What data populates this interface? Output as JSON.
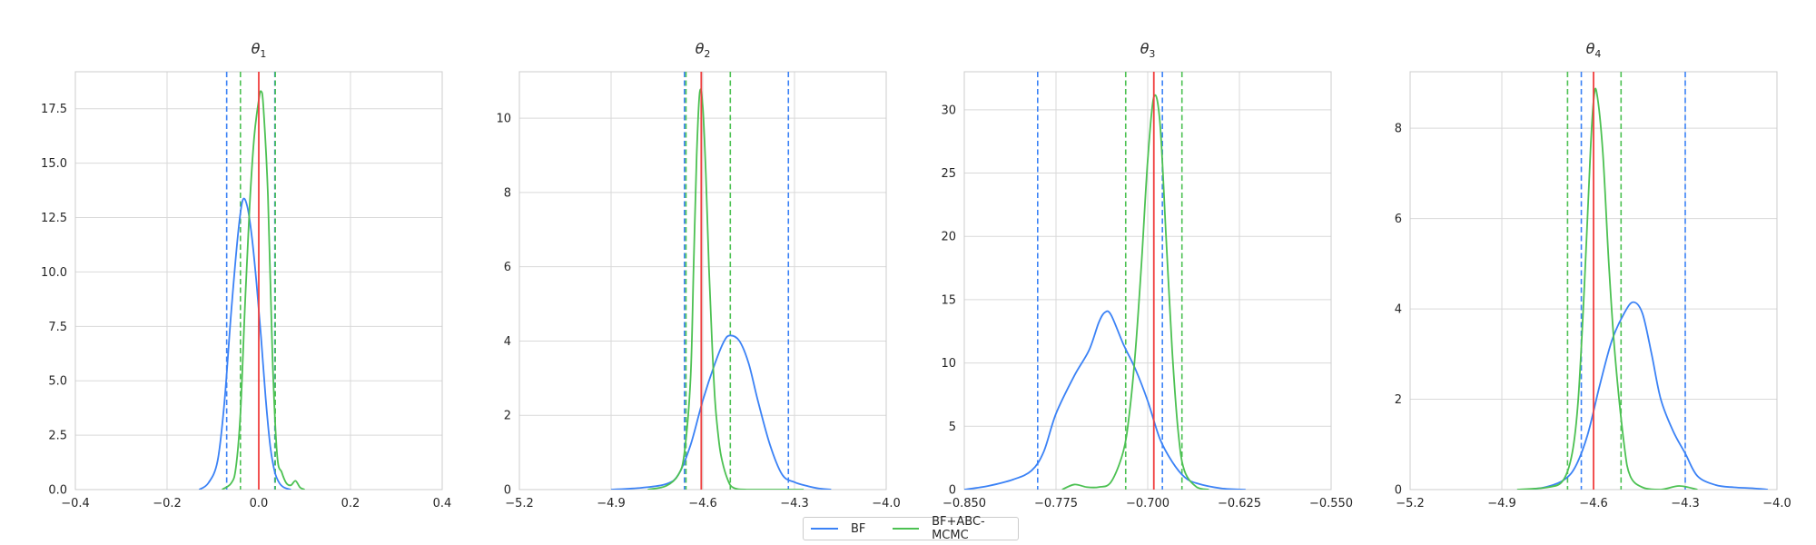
{
  "chart_data": [
    {
      "type": "line",
      "title": "θ",
      "title_sub": "1",
      "xlim": [
        -0.4,
        0.4
      ],
      "ylim": [
        0,
        19.2
      ],
      "xticks": [
        -0.4,
        -0.2,
        0.0,
        0.2,
        0.4
      ],
      "xtick_labels": [
        "−0.4",
        "−0.2",
        "0.0",
        "0.2",
        "0.4"
      ],
      "yticks": [
        0.0,
        2.5,
        5.0,
        7.5,
        10.0,
        12.5,
        15.0,
        17.5
      ],
      "ytick_labels": [
        "0.0",
        "2.5",
        "5.0",
        "7.5",
        "10.0",
        "12.5",
        "15.0",
        "17.5"
      ],
      "true_value": 0.0,
      "series": [
        {
          "name": "BF",
          "color": "#3b82f6",
          "x": [
            -0.13,
            -0.11,
            -0.09,
            -0.075,
            -0.06,
            -0.045,
            -0.035,
            -0.025,
            -0.015,
            -0.005,
            0.005,
            0.015,
            0.025,
            0.035,
            0.045,
            0.055,
            0.07
          ],
          "y": [
            0,
            0.3,
            1.3,
            4.0,
            8.2,
            11.8,
            13.3,
            13.0,
            11.6,
            9.5,
            7.0,
            4.2,
            2.0,
            0.8,
            0.3,
            0.1,
            0
          ],
          "ci": [
            -0.07,
            0.035
          ]
        },
        {
          "name": "BF+ABC-MCMC",
          "color": "#4cc152",
          "x": [
            -0.08,
            -0.06,
            -0.05,
            -0.04,
            -0.03,
            -0.02,
            -0.01,
            0.0,
            0.005,
            0.01,
            0.02,
            0.03,
            0.04,
            0.05,
            0.06,
            0.07,
            0.08,
            0.09,
            0.1
          ],
          "y": [
            0,
            0.3,
            1.0,
            3.5,
            8.5,
            13.0,
            16.2,
            17.9,
            18.3,
            17.6,
            13.5,
            6.0,
            1.6,
            0.8,
            0.3,
            0.2,
            0.4,
            0.1,
            0
          ],
          "ci": [
            -0.04,
            0.036
          ]
        }
      ]
    },
    {
      "type": "line",
      "title": "θ",
      "title_sub": "2",
      "xlim": [
        -5.2,
        -4.0
      ],
      "ylim": [
        0,
        11.25
      ],
      "xticks": [
        -5.2,
        -4.9,
        -4.6,
        -4.3,
        -4.0
      ],
      "xtick_labels": [
        "−5.2",
        "−4.9",
        "−4.6",
        "−4.3",
        "−4.0"
      ],
      "yticks": [
        0,
        2,
        4,
        6,
        8,
        10
      ],
      "ytick_labels": [
        "0",
        "2",
        "4",
        "6",
        "8",
        "10"
      ],
      "true_value": -4.605,
      "series": [
        {
          "name": "BF",
          "color": "#3b82f6",
          "x": [
            -4.9,
            -4.8,
            -4.72,
            -4.68,
            -4.64,
            -4.6,
            -4.56,
            -4.53,
            -4.51,
            -4.48,
            -4.45,
            -4.42,
            -4.38,
            -4.34,
            -4.3,
            -4.26,
            -4.22,
            -4.18
          ],
          "y": [
            0,
            0.05,
            0.15,
            0.4,
            1.2,
            2.4,
            3.4,
            4.0,
            4.15,
            4.0,
            3.4,
            2.4,
            1.2,
            0.4,
            0.2,
            0.1,
            0.03,
            0
          ],
          "ci": [
            -4.66,
            -4.32
          ]
        },
        {
          "name": "BF+ABC-MCMC",
          "color": "#4cc152",
          "x": [
            -4.78,
            -4.72,
            -4.68,
            -4.66,
            -4.64,
            -4.63,
            -4.62,
            -4.61,
            -4.6,
            -4.59,
            -4.58,
            -4.57,
            -4.56,
            -4.55,
            -4.54,
            -4.52,
            -4.5,
            -4.45,
            -4.35,
            -4.27
          ],
          "y": [
            0,
            0.1,
            0.4,
            1.0,
            3.0,
            6.0,
            9.0,
            10.7,
            10.3,
            8.5,
            6.0,
            4.0,
            2.4,
            1.5,
            0.9,
            0.3,
            0.05,
            0,
            0,
            0
          ],
          "ci": [
            -4.655,
            -4.51
          ]
        }
      ]
    },
    {
      "type": "line",
      "title": "θ",
      "title_sub": "3",
      "xlim": [
        -0.85,
        -0.55
      ],
      "ylim": [
        0,
        33
      ],
      "xticks": [
        -0.85,
        -0.775,
        -0.7,
        -0.625,
        -0.55
      ],
      "xtick_labels": [
        "−0.850",
        "−0.775",
        "−0.700",
        "−0.625",
        "−0.550"
      ],
      "yticks": [
        0,
        5,
        10,
        15,
        20,
        25,
        30
      ],
      "ytick_labels": [
        "0",
        "5",
        "10",
        "15",
        "20",
        "25",
        "30"
      ],
      "true_value": -0.695,
      "series": [
        {
          "name": "BF",
          "color": "#3b82f6",
          "x": [
            -0.85,
            -0.83,
            -0.81,
            -0.795,
            -0.785,
            -0.775,
            -0.76,
            -0.748,
            -0.74,
            -0.735,
            -0.73,
            -0.72,
            -0.71,
            -0.7,
            -0.69,
            -0.68,
            -0.67,
            -0.66,
            -0.64,
            -0.62
          ],
          "y": [
            0,
            0.3,
            0.8,
            1.5,
            3.0,
            6.0,
            9.0,
            11.0,
            13.2,
            14.0,
            13.8,
            11.5,
            9.5,
            7.0,
            4.0,
            2.2,
            1.0,
            0.5,
            0.1,
            0
          ],
          "ci": [
            -0.79,
            -0.688
          ]
        },
        {
          "name": "BF+ABC-MCMC",
          "color": "#4cc152",
          "x": [
            -0.77,
            -0.76,
            -0.75,
            -0.74,
            -0.73,
            -0.72,
            -0.715,
            -0.71,
            -0.705,
            -0.7,
            -0.695,
            -0.69,
            -0.685,
            -0.68,
            -0.675,
            -0.67,
            -0.66,
            -0.65
          ],
          "y": [
            0,
            0.4,
            0.2,
            0.2,
            0.6,
            3.0,
            6.0,
            11.0,
            18.0,
            26.0,
            31.0,
            29.0,
            20.0,
            11.0,
            4.5,
            1.5,
            0.2,
            0
          ],
          "ci": [
            -0.718,
            -0.672
          ]
        }
      ]
    },
    {
      "type": "line",
      "title": "θ",
      "title_sub": "4",
      "xlim": [
        -5.2,
        -4.0
      ],
      "ylim": [
        0,
        9.25
      ],
      "xticks": [
        -5.2,
        -4.9,
        -4.6,
        -4.3,
        -4.0
      ],
      "xtick_labels": [
        "−5.2",
        "−4.9",
        "−4.6",
        "−4.3",
        "−4.0"
      ],
      "yticks": [
        0,
        2,
        4,
        6,
        8
      ],
      "ytick_labels": [
        "0",
        "2",
        "4",
        "6",
        "8"
      ],
      "true_value": -4.6,
      "series": [
        {
          "name": "BF",
          "color": "#3b82f6",
          "x": [
            -4.82,
            -4.76,
            -4.7,
            -4.66,
            -4.62,
            -4.58,
            -4.54,
            -4.5,
            -4.47,
            -4.44,
            -4.41,
            -4.38,
            -4.34,
            -4.3,
            -4.26,
            -4.2,
            -4.14,
            -4.08,
            -4.03
          ],
          "y": [
            0,
            0.05,
            0.2,
            0.5,
            1.2,
            2.3,
            3.3,
            3.9,
            4.15,
            3.9,
            3.0,
            2.0,
            1.3,
            0.8,
            0.3,
            0.1,
            0.05,
            0.03,
            0
          ],
          "ci": [
            -4.64,
            -4.3
          ]
        },
        {
          "name": "BF+ABC-MCMC",
          "color": "#4cc152",
          "x": [
            -4.85,
            -4.75,
            -4.7,
            -4.67,
            -4.65,
            -4.63,
            -4.61,
            -4.6,
            -4.59,
            -4.57,
            -4.55,
            -4.53,
            -4.5,
            -4.48,
            -4.44,
            -4.38,
            -4.32,
            -4.26
          ],
          "y": [
            0,
            0.05,
            0.2,
            0.8,
            2.0,
            4.5,
            7.5,
            8.6,
            8.8,
            7.5,
            5.0,
            3.0,
            1.0,
            0.3,
            0.05,
            0,
            0.08,
            0
          ],
          "ci": [
            -4.685,
            -4.51
          ]
        }
      ]
    }
  ],
  "legend": {
    "items": [
      {
        "label": "BF",
        "color": "#3b82f6"
      },
      {
        "label": "BF+ABC-MCMC",
        "color": "#4cc152"
      }
    ]
  },
  "colors": {
    "true_value": "#f03e3e",
    "grid": "#d9d9d9",
    "frame": "#cccccc"
  }
}
